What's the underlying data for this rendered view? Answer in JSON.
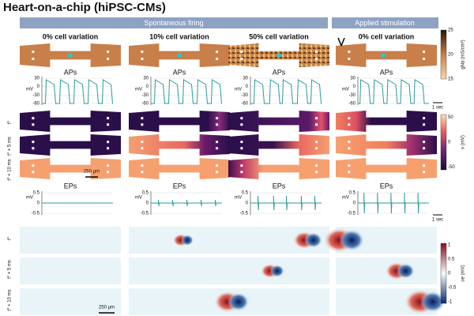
{
  "title": "Heart-on-a-chip (hiPSC-CMs)",
  "sections": [
    "Spontaneous firing",
    "Applied stimulation"
  ],
  "columns": [
    "0% cell variation",
    "10% cell variation",
    "50% cell variation",
    "0% cell variation"
  ],
  "ap_title": "APs",
  "ep_title": "EPs",
  "ap_axis": {
    "unit": "mV",
    "ticks": [
      "30",
      "0",
      "-30",
      "-60"
    ]
  },
  "ep_axis": {
    "unit": "mV",
    "ticks": [
      "0.5",
      "0",
      "-0.5"
    ]
  },
  "time_scale": "1 sec",
  "space_scale": "250 μm",
  "row_labels": [
    "t*",
    "t* + 5 ms",
    "t* + 10 ms"
  ],
  "colorbars": {
    "gna": {
      "label": "gNa (mS/cm²)",
      "ticks": [
        "25",
        "20",
        "15"
      ]
    },
    "v": {
      "label": "v (mV)",
      "ticks": [
        "50",
        "0",
        "-50"
      ]
    },
    "ue": {
      "label": "ue (mV)",
      "ticks": [
        "1",
        "0.5",
        "0",
        "-0.5",
        "-1"
      ]
    }
  }
}
